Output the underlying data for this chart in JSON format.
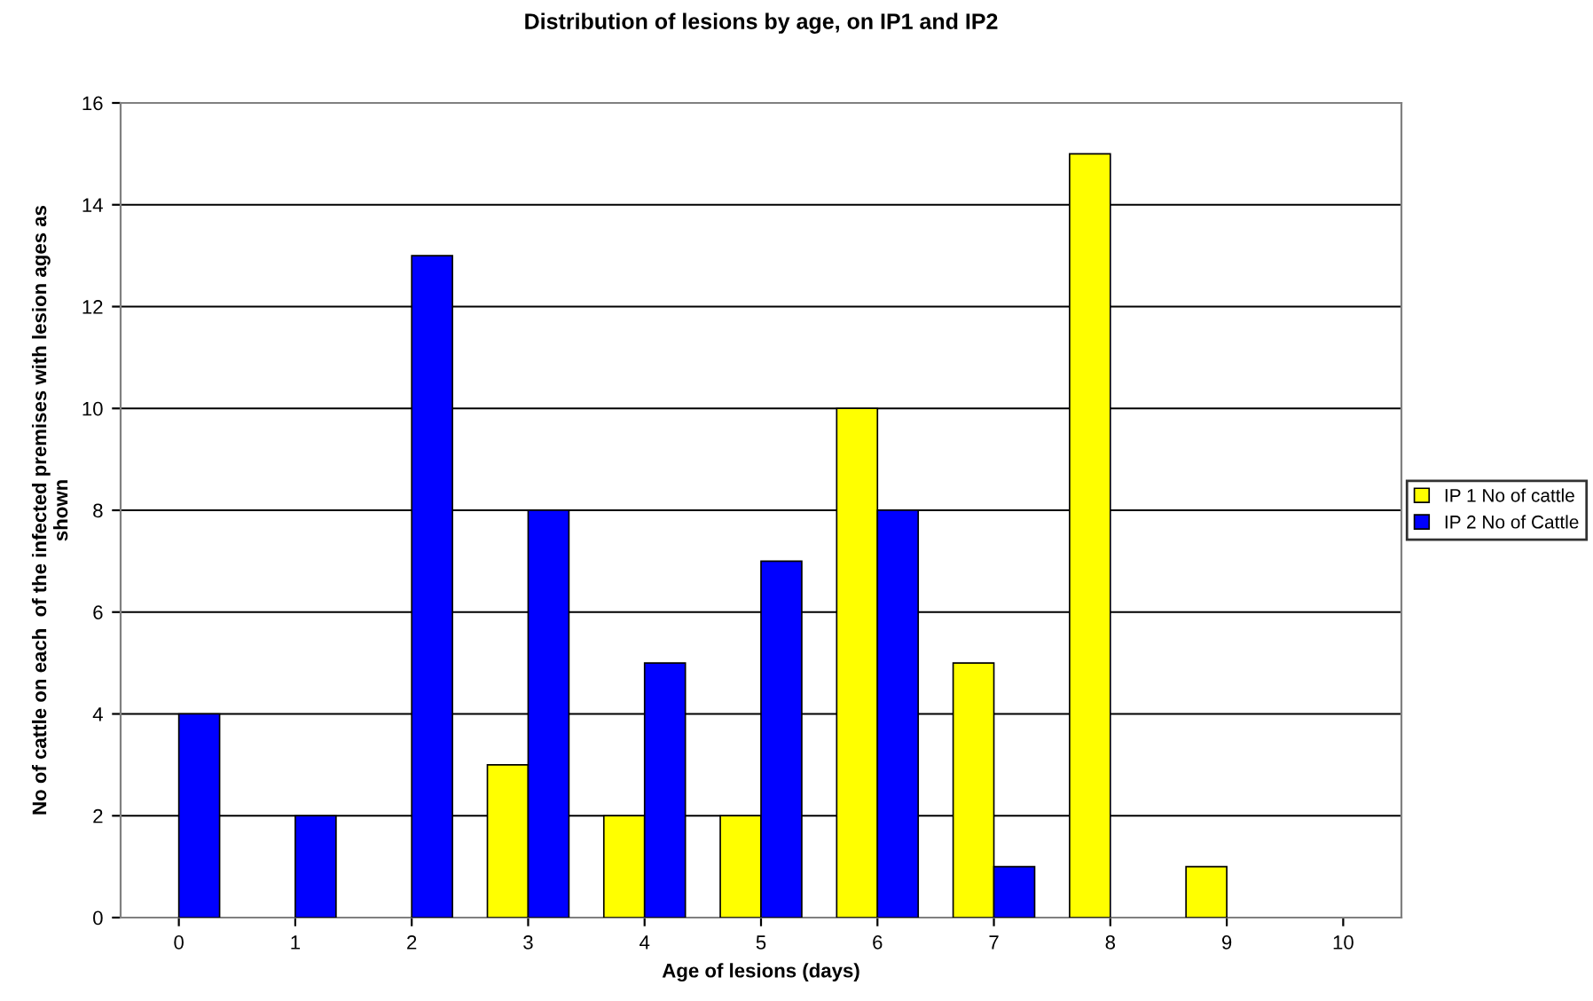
{
  "chart_data": {
    "type": "bar",
    "title": "Distribution of lesions by age, on IP1 and IP2",
    "xlabel": "Age of lesions (days)",
    "ylabel": "No of cattle on each  of the infected premises with lesion ages as\nshown",
    "categories": [
      "0",
      "1",
      "2",
      "3",
      "4",
      "5",
      "6",
      "7",
      "8",
      "9",
      "10"
    ],
    "series": [
      {
        "name": "IP 1 No of cattle",
        "color": "#ffff00",
        "values": [
          null,
          null,
          null,
          3,
          2,
          2,
          10,
          5,
          15,
          1,
          null
        ]
      },
      {
        "name": "IP 2 No of Cattle",
        "color": "#0000ff",
        "values": [
          4,
          2,
          13,
          8,
          5,
          7,
          8,
          1,
          null,
          null,
          null
        ]
      }
    ],
    "ylim": [
      0,
      16
    ],
    "yticks": [
      0,
      2,
      4,
      6,
      8,
      10,
      12,
      14,
      16
    ],
    "grid": "y",
    "legend": "right"
  }
}
